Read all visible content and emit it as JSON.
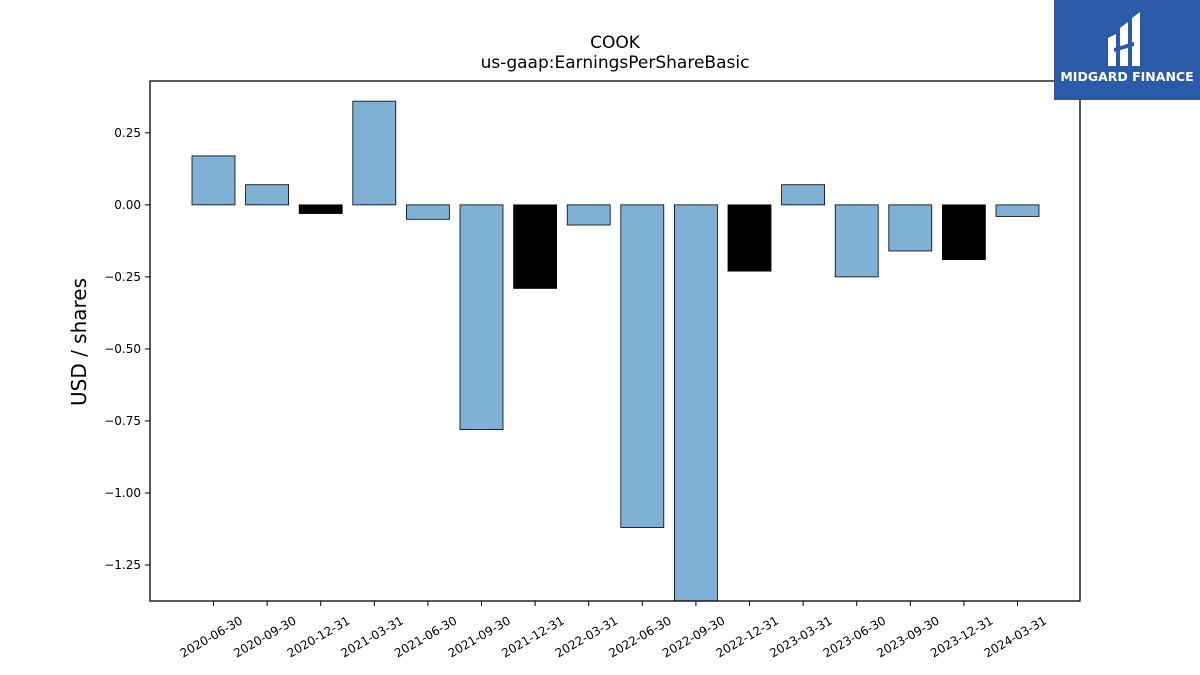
{
  "chart_data": {
    "type": "bar",
    "title": "COOK",
    "subtitle": "us-gaap:EarningsPerShareBasic",
    "xlabel": "",
    "ylabel": "USD / shares",
    "categories": [
      "2020-06-30",
      "2020-09-30",
      "2020-12-31",
      "2021-03-31",
      "2021-06-30",
      "2021-09-30",
      "2021-12-31",
      "2022-03-31",
      "2022-06-30",
      "2022-09-30",
      "2022-12-31",
      "2023-03-31",
      "2023-06-30",
      "2023-09-30",
      "2023-12-31",
      "2024-03-31"
    ],
    "values": [
      0.17,
      0.07,
      -0.03,
      0.36,
      -0.05,
      -0.78,
      -0.29,
      -0.07,
      -1.12,
      -1.47,
      -0.23,
      0.07,
      -0.25,
      -0.16,
      -0.19,
      -0.04
    ],
    "bar_colors": [
      "#7fb0d5",
      "#7fb0d5",
      "#000000",
      "#7fb0d5",
      "#7fb0d5",
      "#7fb0d5",
      "#000000",
      "#7fb0d5",
      "#7fb0d5",
      "#7fb0d5",
      "#000000",
      "#7fb0d5",
      "#7fb0d5",
      "#7fb0d5",
      "#000000",
      "#7fb0d5"
    ],
    "ylim": [
      -1.375,
      0.43
    ],
    "yticks": [
      0.25,
      0.0,
      -0.25,
      -0.5,
      -0.75,
      -1.0,
      -1.25
    ],
    "ytick_labels": [
      "0.25",
      "0.00",
      "−0.25",
      "−0.50",
      "−0.75",
      "−1.00",
      "−1.25"
    ],
    "grid": false,
    "legend": "none"
  },
  "logo": {
    "text": "MIDGARD FINANCE",
    "background": "#2b5aa8",
    "icon": "midgard-logo-icon"
  }
}
